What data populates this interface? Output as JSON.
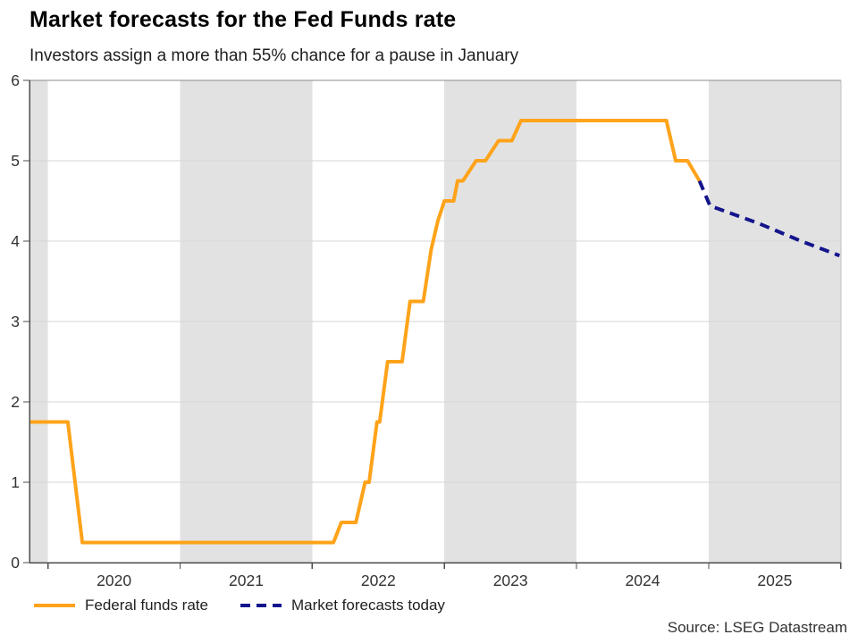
{
  "header": {
    "title": "Market forecasts for the Fed Funds rate",
    "subtitle": "Investors assign a more than 55% chance for a pause in January"
  },
  "legend": {
    "items": [
      {
        "label": "Federal funds rate",
        "color": "#FFA31A",
        "line_style": "solid"
      },
      {
        "label": "Market forecasts today",
        "color": "#14148C",
        "line_style": "dashed"
      }
    ]
  },
  "source": "Source: LSEG Datastream",
  "colors": {
    "band": "#E2E2E2",
    "grid": "#D6D6D6",
    "axis": "#4D4D4D",
    "border": "#8C8C8C",
    "right_border": "#C2C2C2",
    "tick_text": "#333333"
  },
  "chart_data": {
    "type": "line",
    "title": "Market forecasts for the Fed Funds rate",
    "subtitle": "Investors assign a more than 55% chance for a pause in January",
    "xlabel": "",
    "ylabel": "",
    "xlim": [
      2019.86,
      2026.0
    ],
    "ylim": [
      0,
      6
    ],
    "grid": true,
    "legend_position": "bottom-left",
    "y_ticks": [
      0,
      1,
      2,
      3,
      4,
      5,
      6
    ],
    "y_tick_labels": [
      "0",
      "1",
      "2",
      "3",
      "4",
      "5",
      "6"
    ],
    "y_gridlines": [
      1,
      2,
      3,
      4,
      5
    ],
    "x_boundaries": [
      2020,
      2021,
      2022,
      2023,
      2024,
      2025,
      2026
    ],
    "x_tick_labels": [
      "2020",
      "2021",
      "2022",
      "2023",
      "2024",
      "2025"
    ],
    "background_bands": [
      [
        2019.86,
        2020.0
      ],
      [
        2021.0,
        2022.0
      ],
      [
        2023.0,
        2024.0
      ],
      [
        2025.0,
        2026.0
      ]
    ],
    "series": [
      {
        "name": "Federal funds rate",
        "color": "#FFA31A",
        "line_style": "solid",
        "points": [
          [
            2019.86,
            1.75
          ],
          [
            2020.15,
            1.75
          ],
          [
            2020.26,
            0.25
          ],
          [
            2022.16,
            0.25
          ],
          [
            2022.22,
            0.5
          ],
          [
            2022.33,
            0.5
          ],
          [
            2022.4,
            1.0
          ],
          [
            2022.43,
            1.0
          ],
          [
            2022.49,
            1.75
          ],
          [
            2022.51,
            1.75
          ],
          [
            2022.57,
            2.5
          ],
          [
            2022.68,
            2.5
          ],
          [
            2022.74,
            3.25
          ],
          [
            2022.84,
            3.25
          ],
          [
            2022.9,
            3.9
          ],
          [
            2022.95,
            4.25
          ],
          [
            2023.0,
            4.5
          ],
          [
            2023.07,
            4.5
          ],
          [
            2023.1,
            4.75
          ],
          [
            2023.14,
            4.75
          ],
          [
            2023.24,
            5.0
          ],
          [
            2023.31,
            5.0
          ],
          [
            2023.41,
            5.25
          ],
          [
            2023.51,
            5.25
          ],
          [
            2023.58,
            5.5
          ],
          [
            2024.68,
            5.5
          ],
          [
            2024.75,
            5.0
          ],
          [
            2024.84,
            5.0
          ],
          [
            2024.93,
            4.75
          ]
        ]
      },
      {
        "name": "Market forecasts today",
        "color": "#14148C",
        "line_style": "dashed",
        "points": [
          [
            2024.93,
            4.75
          ],
          [
            2025.01,
            4.44
          ],
          [
            2025.38,
            4.22
          ],
          [
            2025.7,
            4.0
          ],
          [
            2025.99,
            3.82
          ]
        ]
      }
    ]
  }
}
